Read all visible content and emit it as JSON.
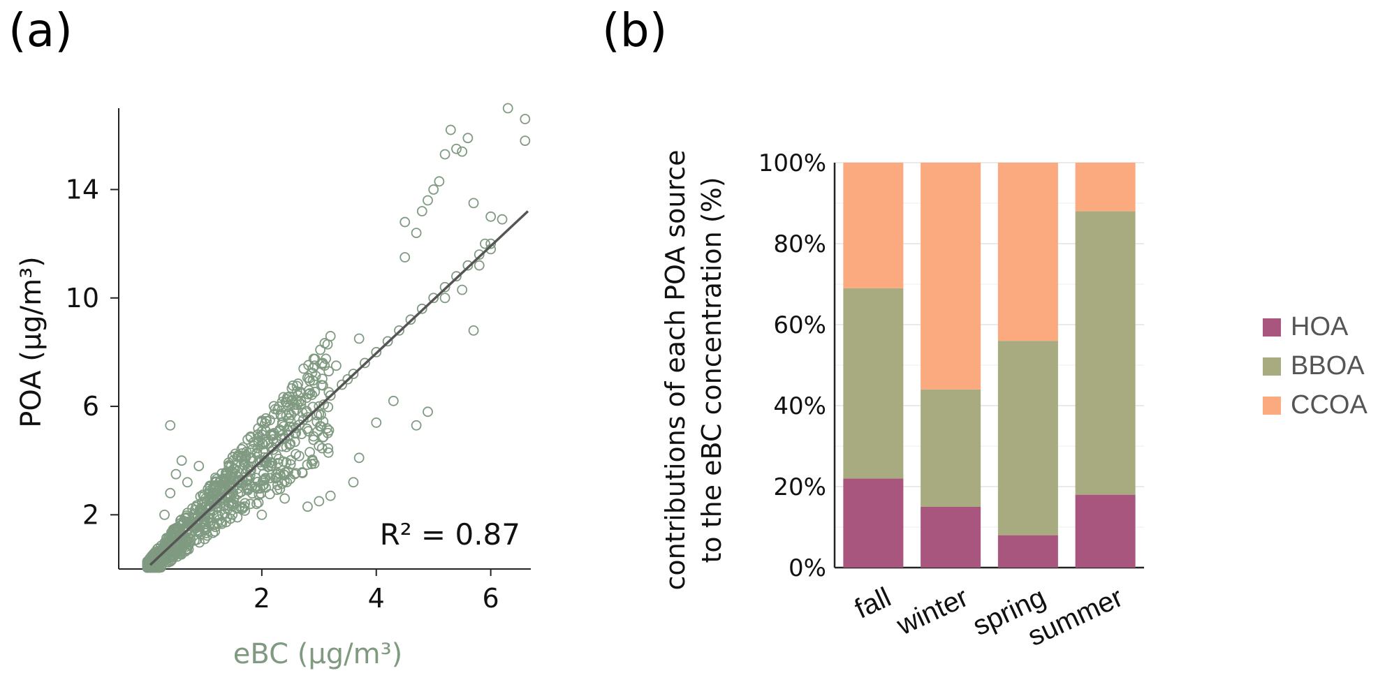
{
  "chart_data": [
    {
      "panel": "(a)",
      "type": "scatter",
      "xlabel": "eBC (μg/m³)",
      "ylabel": "POA (μg/m³)",
      "x_ticks": [
        2,
        4,
        6
      ],
      "y_ticks": [
        2,
        6,
        10,
        14
      ],
      "xlim": [
        -0.5,
        6.7
      ],
      "ylim": [
        0,
        17
      ],
      "annotation": "R² = 0.87",
      "fit_line": {
        "x": [
          0.05,
          6.65
        ],
        "y": [
          0.15,
          13.2
        ]
      },
      "marker_color": "#7f9a80",
      "fit_color": "#555555",
      "points_note_sample": [
        [
          0.1,
          0.2
        ],
        [
          0.2,
          0.5
        ],
        [
          0.3,
          0.6
        ],
        [
          0.4,
          0.9
        ],
        [
          0.5,
          1.0
        ],
        [
          0.6,
          1.2
        ],
        [
          0.7,
          1.4
        ],
        [
          0.8,
          1.6
        ],
        [
          0.9,
          1.8
        ],
        [
          1.0,
          2.0
        ],
        [
          1.1,
          2.2
        ],
        [
          1.2,
          2.4
        ],
        [
          1.3,
          2.6
        ],
        [
          1.4,
          2.8
        ],
        [
          1.5,
          3.0
        ],
        [
          1.6,
          3.2
        ],
        [
          1.8,
          3.6
        ],
        [
          2.0,
          4.0
        ],
        [
          2.2,
          4.4
        ],
        [
          2.4,
          4.8
        ],
        [
          2.6,
          5.2
        ],
        [
          2.8,
          5.6
        ],
        [
          3.0,
          6.0
        ],
        [
          3.2,
          6.4
        ],
        [
          3.4,
          6.8
        ],
        [
          3.6,
          7.2
        ],
        [
          3.8,
          7.6
        ],
        [
          4.0,
          8.0
        ],
        [
          4.2,
          8.4
        ],
        [
          4.4,
          8.8
        ],
        [
          4.6,
          9.2
        ],
        [
          4.8,
          9.6
        ],
        [
          5.0,
          10.0
        ],
        [
          5.2,
          10.4
        ],
        [
          5.4,
          10.8
        ],
        [
          5.6,
          11.2
        ],
        [
          5.8,
          11.6
        ],
        [
          6.0,
          12.0
        ],
        [
          0.3,
          2.0
        ],
        [
          0.4,
          2.8
        ],
        [
          0.5,
          3.5
        ],
        [
          0.6,
          4.0
        ],
        [
          0.4,
          5.3
        ],
        [
          0.7,
          3.2
        ],
        [
          0.9,
          3.8
        ],
        [
          1.2,
          3.2
        ],
        [
          1.5,
          2.8
        ],
        [
          1.8,
          2.4
        ],
        [
          2.0,
          2.0
        ],
        [
          2.4,
          2.6
        ],
        [
          2.8,
          2.3
        ],
        [
          3.0,
          2.5
        ],
        [
          3.2,
          2.7
        ],
        [
          3.6,
          3.2
        ],
        [
          3.7,
          4.1
        ],
        [
          4.0,
          5.4
        ],
        [
          4.3,
          6.2
        ],
        [
          4.7,
          5.3
        ],
        [
          4.9,
          5.8
        ],
        [
          3.3,
          7.5
        ],
        [
          3.5,
          7.0
        ],
        [
          3.7,
          8.5
        ],
        [
          4.5,
          11.5
        ],
        [
          4.5,
          12.8
        ],
        [
          4.7,
          12.4
        ],
        [
          4.8,
          13.2
        ],
        [
          4.9,
          13.6
        ],
        [
          5.0,
          14.0
        ],
        [
          5.1,
          14.3
        ],
        [
          5.2,
          15.3
        ],
        [
          5.4,
          15.5
        ],
        [
          5.5,
          15.4
        ],
        [
          5.6,
          15.9
        ],
        [
          5.3,
          16.2
        ],
        [
          5.7,
          13.5
        ],
        [
          5.9,
          12.0
        ],
        [
          6.0,
          11.8
        ],
        [
          5.8,
          11.2
        ],
        [
          5.5,
          10.3
        ],
        [
          5.2,
          10.0
        ],
        [
          5.7,
          8.8
        ],
        [
          6.2,
          12.9
        ],
        [
          6.3,
          17.0
        ],
        [
          6.6,
          16.6
        ],
        [
          6.6,
          15.8
        ],
        [
          6.0,
          13.0
        ]
      ]
    },
    {
      "panel": "(b)",
      "type": "stacked_bar_percent",
      "categories": [
        "fall",
        "winter",
        "spring",
        "summer"
      ],
      "series": [
        {
          "name": "HOA",
          "color": "#a8567e",
          "values": [
            22,
            15,
            8,
            18
          ]
        },
        {
          "name": "BBOA",
          "color": "#a8aa7f",
          "values": [
            47,
            29,
            48,
            70
          ]
        },
        {
          "name": "CCOA",
          "color": "#fba97e",
          "values": [
            31,
            56,
            44,
            12
          ]
        }
      ],
      "y_ticks": [
        "0%",
        "20%",
        "40%",
        "60%",
        "80%",
        "100%"
      ],
      "ylabel_line1": "contributions of each POA source",
      "ylabel_line2": "to the eBC concentration (%)",
      "ylim": [
        0,
        100
      ],
      "legend_position": "right"
    }
  ]
}
